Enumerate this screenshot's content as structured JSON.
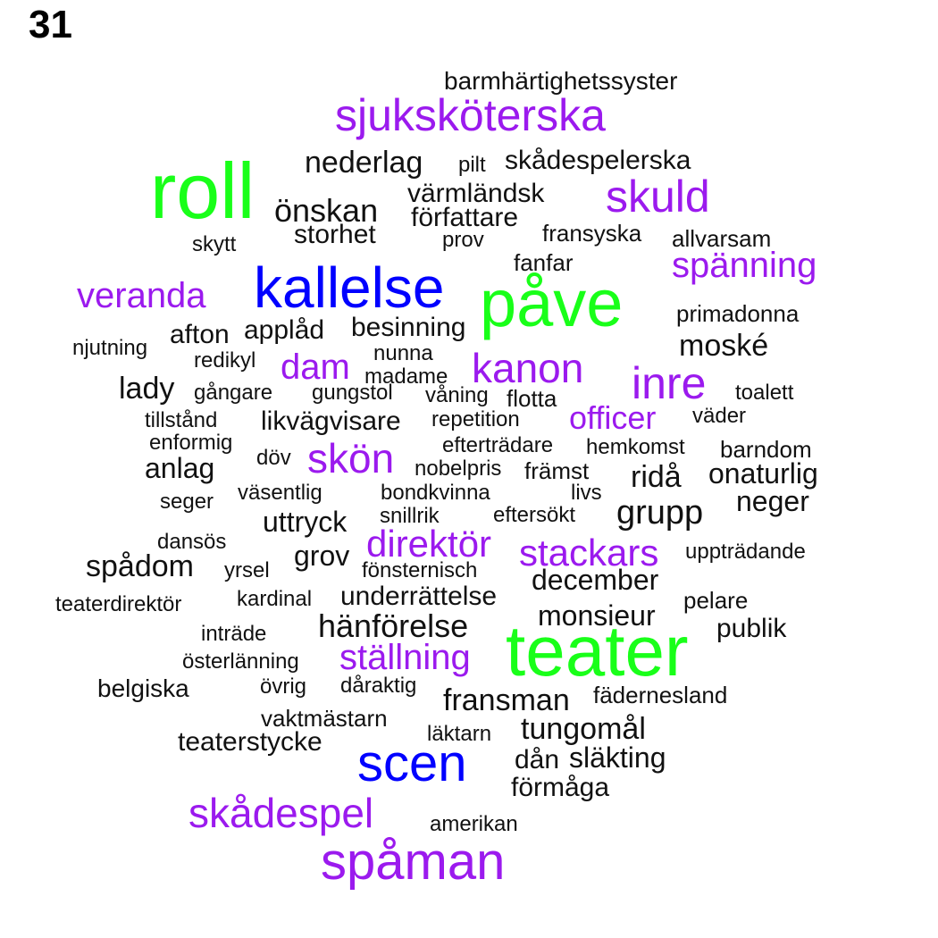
{
  "page_number": "31",
  "colors": {
    "green": "#19ff19",
    "blue": "#0000ff",
    "purple": "#9b1aee",
    "black": "#111111"
  },
  "words": [
    {
      "text": "barmhärtighetssyster",
      "color": "black"
    },
    {
      "text": "sjuksköterska",
      "color": "purple"
    },
    {
      "text": "nederlag",
      "color": "black"
    },
    {
      "text": "pilt",
      "color": "black"
    },
    {
      "text": "skådespelerska",
      "color": "black"
    },
    {
      "text": "roll",
      "color": "green"
    },
    {
      "text": "värmländsk",
      "color": "black"
    },
    {
      "text": "skuld",
      "color": "purple"
    },
    {
      "text": "önskan",
      "color": "black"
    },
    {
      "text": "författare",
      "color": "black"
    },
    {
      "text": "storhet",
      "color": "black"
    },
    {
      "text": "prov",
      "color": "black"
    },
    {
      "text": "fransyska",
      "color": "black"
    },
    {
      "text": "allvarsam",
      "color": "black"
    },
    {
      "text": "skytt",
      "color": "black"
    },
    {
      "text": "fanfar",
      "color": "black"
    },
    {
      "text": "spänning",
      "color": "purple"
    },
    {
      "text": "kallelse",
      "color": "blue"
    },
    {
      "text": "veranda",
      "color": "purple"
    },
    {
      "text": "påve",
      "color": "green"
    },
    {
      "text": "primadonna",
      "color": "black"
    },
    {
      "text": "afton",
      "color": "black"
    },
    {
      "text": "applåd",
      "color": "black"
    },
    {
      "text": "besinning",
      "color": "black"
    },
    {
      "text": "moské",
      "color": "black"
    },
    {
      "text": "njutning",
      "color": "black"
    },
    {
      "text": "nunna",
      "color": "black"
    },
    {
      "text": "redikyl",
      "color": "black"
    },
    {
      "text": "dam",
      "color": "purple"
    },
    {
      "text": "madame",
      "color": "black"
    },
    {
      "text": "kanon",
      "color": "purple"
    },
    {
      "text": "inre",
      "color": "purple"
    },
    {
      "text": "lady",
      "color": "black"
    },
    {
      "text": "gångare",
      "color": "black"
    },
    {
      "text": "gungstol",
      "color": "black"
    },
    {
      "text": "våning",
      "color": "black"
    },
    {
      "text": "flotta",
      "color": "black"
    },
    {
      "text": "toalett",
      "color": "black"
    },
    {
      "text": "tillstånd",
      "color": "black"
    },
    {
      "text": "likvägvisare",
      "color": "black"
    },
    {
      "text": "repetition",
      "color": "black"
    },
    {
      "text": "officer",
      "color": "purple"
    },
    {
      "text": "väder",
      "color": "black"
    },
    {
      "text": "enformig",
      "color": "black"
    },
    {
      "text": "efterträdare",
      "color": "black"
    },
    {
      "text": "hemkomst",
      "color": "black"
    },
    {
      "text": "barndom",
      "color": "black"
    },
    {
      "text": "skön",
      "color": "purple"
    },
    {
      "text": "döv",
      "color": "black"
    },
    {
      "text": "anlag",
      "color": "black"
    },
    {
      "text": "nobelpris",
      "color": "black"
    },
    {
      "text": "främst",
      "color": "black"
    },
    {
      "text": "ridå",
      "color": "black"
    },
    {
      "text": "onaturlig",
      "color": "black"
    },
    {
      "text": "väsentlig",
      "color": "black"
    },
    {
      "text": "bondkvinna",
      "color": "black"
    },
    {
      "text": "livs",
      "color": "black"
    },
    {
      "text": "seger",
      "color": "black"
    },
    {
      "text": "neger",
      "color": "black"
    },
    {
      "text": "grupp",
      "color": "black"
    },
    {
      "text": "uttryck",
      "color": "black"
    },
    {
      "text": "snillrik",
      "color": "black"
    },
    {
      "text": "eftersökt",
      "color": "black"
    },
    {
      "text": "dansös",
      "color": "black"
    },
    {
      "text": "direktör",
      "color": "purple"
    },
    {
      "text": "stackars",
      "color": "purple"
    },
    {
      "text": "uppträdande",
      "color": "black"
    },
    {
      "text": "spådom",
      "color": "black"
    },
    {
      "text": "grov",
      "color": "black"
    },
    {
      "text": "yrsel",
      "color": "black"
    },
    {
      "text": "fönsternisch",
      "color": "black"
    },
    {
      "text": "december",
      "color": "black"
    },
    {
      "text": "kardinal",
      "color": "black"
    },
    {
      "text": "underrättelse",
      "color": "black"
    },
    {
      "text": "pelare",
      "color": "black"
    },
    {
      "text": "teaterdirektör",
      "color": "black"
    },
    {
      "text": "monsieur",
      "color": "black"
    },
    {
      "text": "hänförelse",
      "color": "black"
    },
    {
      "text": "publik",
      "color": "black"
    },
    {
      "text": "inträde",
      "color": "black"
    },
    {
      "text": "teater",
      "color": "green"
    },
    {
      "text": "ställning",
      "color": "purple"
    },
    {
      "text": "österlänning",
      "color": "black"
    },
    {
      "text": "belgiska",
      "color": "black"
    },
    {
      "text": "övrig",
      "color": "black"
    },
    {
      "text": "dåraktig",
      "color": "black"
    },
    {
      "text": "fransman",
      "color": "black"
    },
    {
      "text": "fädernesland",
      "color": "black"
    },
    {
      "text": "vaktmästarn",
      "color": "black"
    },
    {
      "text": "tungomål",
      "color": "black"
    },
    {
      "text": "läktarn",
      "color": "black"
    },
    {
      "text": "teaterstycke",
      "color": "black"
    },
    {
      "text": "scen",
      "color": "blue"
    },
    {
      "text": "dån",
      "color": "black"
    },
    {
      "text": "släkting",
      "color": "black"
    },
    {
      "text": "förmåga",
      "color": "black"
    },
    {
      "text": "skådespel",
      "color": "purple"
    },
    {
      "text": "amerikan",
      "color": "black"
    },
    {
      "text": "spåman",
      "color": "purple"
    }
  ]
}
